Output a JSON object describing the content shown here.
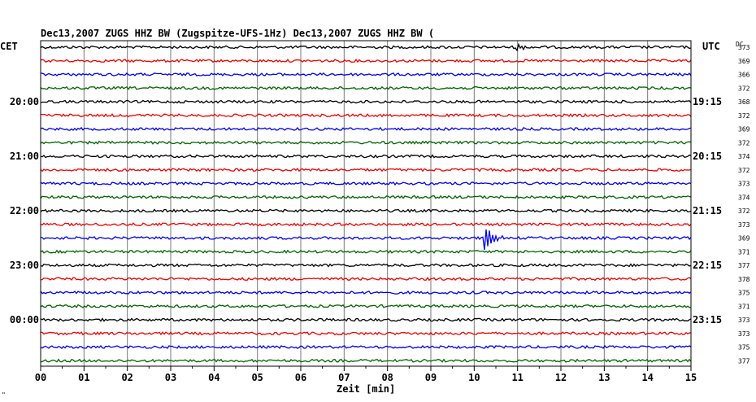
{
  "header": {
    "text": "Dec13,2007   ZUGS HHZ BW (Zugspitze-UFS-1Hz) Dec13,2007   ZUGS HHZ BW ("
  },
  "labels": {
    "left_tz": "CET",
    "right_tz": "UTC",
    "dc": "DC",
    "x_axis_label": "Zeit [min]",
    "corner_mark": "\""
  },
  "colors": {
    "trace_cycle": [
      "#000000",
      "#ee0000",
      "#0000ee",
      "#006400"
    ],
    "grid": "#777777",
    "frame": "#000000"
  },
  "chart_data": {
    "type": "line",
    "title": "",
    "xlabel": "Zeit [min]",
    "xlim": [
      0,
      15
    ],
    "x_ticks": [
      "00",
      "01",
      "02",
      "03",
      "04",
      "05",
      "06",
      "07",
      "08",
      "09",
      "10",
      "11",
      "12",
      "13",
      "14",
      "15"
    ],
    "rows_per_hour": 4,
    "row_count": 24,
    "left_hour_labels": [
      {
        "row": 4,
        "text": "20:00"
      },
      {
        "row": 8,
        "text": "21:00"
      },
      {
        "row": 12,
        "text": "22:00"
      },
      {
        "row": 16,
        "text": "23:00"
      },
      {
        "row": 20,
        "text": "00:00"
      }
    ],
    "right_hour_labels": [
      {
        "row": 4,
        "text": "19:15"
      },
      {
        "row": 8,
        "text": "20:15"
      },
      {
        "row": 12,
        "text": "21:15"
      },
      {
        "row": 16,
        "text": "22:15"
      },
      {
        "row": 20,
        "text": "23:15"
      }
    ],
    "dc_values": [
      373,
      369,
      366,
      372,
      368,
      372,
      369,
      372,
      374,
      372,
      373,
      374,
      372,
      373,
      369,
      371,
      377,
      378,
      375,
      371,
      373,
      373,
      375,
      377
    ],
    "events": [
      {
        "row": 0,
        "minute": 11.0,
        "amplitude": 3
      },
      {
        "row": 14,
        "minute": 10.25,
        "amplitude": 14
      }
    ]
  }
}
